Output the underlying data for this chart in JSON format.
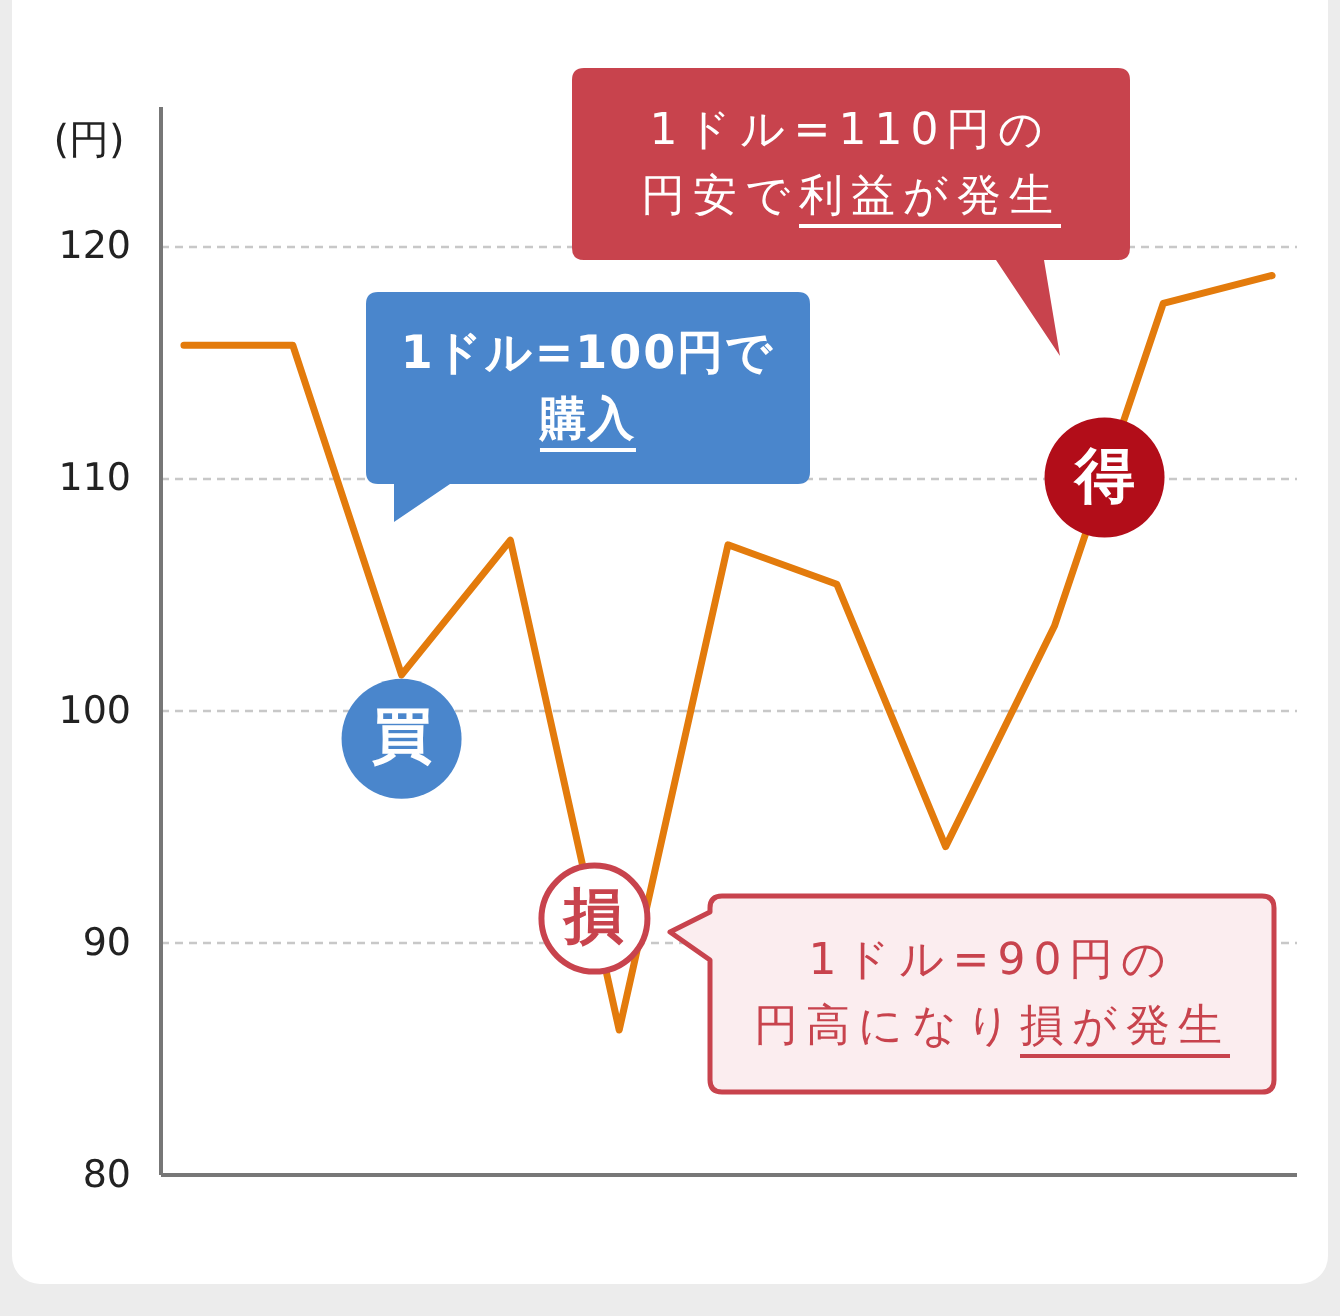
{
  "chart_data": {
    "type": "line",
    "ylabel": "(円)",
    "categories": [
      null,
      null,
      null,
      null,
      null,
      null,
      null,
      null,
      null,
      null,
      null
    ],
    "values": [
      115.7,
      115.7,
      101.5,
      107.3,
      86.2,
      107.1,
      105.4,
      94.1,
      103.6,
      117.5,
      118.7
    ],
    "color": "#e37b0c",
    "ylim": [
      80,
      126
    ],
    "yticks": [
      80,
      90,
      100,
      110,
      120
    ],
    "grid": "y",
    "annotations": [
      "1ドル=100円で購入",
      {
        "text": "買",
        "y": 101.5
      },
      "1ドル=90円の円高になり損が発生",
      {
        "text": "損",
        "y": 91
      },
      "1ドル=110円の円安で利益が発生",
      {
        "text": "得",
        "y": 110
      }
    ]
  }
}
